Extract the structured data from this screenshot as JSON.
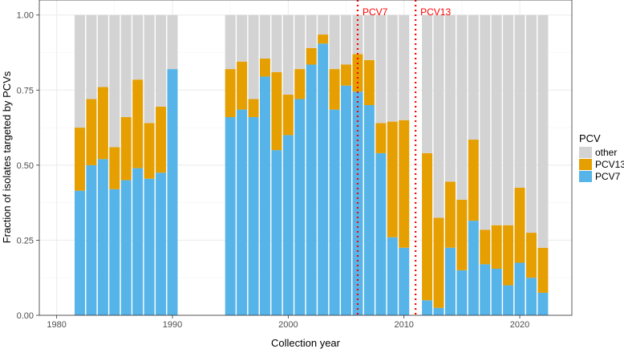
{
  "chart_data": {
    "type": "bar",
    "stacked": true,
    "title": "",
    "xlabel": "Collection year",
    "ylabel": "Fraction of isolates targeted by PCVs",
    "xlim": [
      1978.5,
      2024.5
    ],
    "ylim": [
      0,
      1.05
    ],
    "xticks": [
      1980,
      1990,
      2000,
      2010,
      2020
    ],
    "xtick_labels": [
      "1980",
      "1990",
      "2000",
      "2010",
      "2020"
    ],
    "yticks": [
      0,
      0.25,
      0.5,
      0.75,
      1.0
    ],
    "ytick_labels": [
      "0.00",
      "0.25",
      "0.50",
      "0.75",
      "1.00"
    ],
    "grid": true,
    "legend": {
      "title": "PCV",
      "position": "right",
      "entries": [
        {
          "name": "other",
          "color": "#d3d3d3"
        },
        {
          "name": "PCV13",
          "color": "#e69f00"
        },
        {
          "name": "PCV7",
          "color": "#56b4e9"
        }
      ]
    },
    "series": [
      {
        "name": "PCV7",
        "color": "#56b4e9",
        "points": [
          {
            "x": 1982,
            "y": 0.415
          },
          {
            "x": 1983,
            "y": 0.5
          },
          {
            "x": 1984,
            "y": 0.52
          },
          {
            "x": 1985,
            "y": 0.42
          },
          {
            "x": 1986,
            "y": 0.45
          },
          {
            "x": 1987,
            "y": 0.49
          },
          {
            "x": 1988,
            "y": 0.455
          },
          {
            "x": 1989,
            "y": 0.475
          },
          {
            "x": 1990,
            "y": 0.82
          },
          {
            "x": 1995,
            "y": 0.66
          },
          {
            "x": 1996,
            "y": 0.685
          },
          {
            "x": 1997,
            "y": 0.66
          },
          {
            "x": 1998,
            "y": 0.795
          },
          {
            "x": 1999,
            "y": 0.55
          },
          {
            "x": 2000,
            "y": 0.6
          },
          {
            "x": 2001,
            "y": 0.72
          },
          {
            "x": 2002,
            "y": 0.835
          },
          {
            "x": 2003,
            "y": 0.905
          },
          {
            "x": 2004,
            "y": 0.685
          },
          {
            "x": 2005,
            "y": 0.765
          },
          {
            "x": 2006,
            "y": 0.745
          },
          {
            "x": 2007,
            "y": 0.7
          },
          {
            "x": 2008,
            "y": 0.54
          },
          {
            "x": 2009,
            "y": 0.26
          },
          {
            "x": 2010,
            "y": 0.225
          },
          {
            "x": 2012,
            "y": 0.05
          },
          {
            "x": 2013,
            "y": 0.025
          },
          {
            "x": 2014,
            "y": 0.225
          },
          {
            "x": 2015,
            "y": 0.15
          },
          {
            "x": 2016,
            "y": 0.315
          },
          {
            "x": 2017,
            "y": 0.17
          },
          {
            "x": 2018,
            "y": 0.155
          },
          {
            "x": 2019,
            "y": 0.1
          },
          {
            "x": 2020,
            "y": 0.175
          },
          {
            "x": 2021,
            "y": 0.125
          },
          {
            "x": 2022,
            "y": 0.075
          }
        ]
      },
      {
        "name": "PCV13",
        "color": "#e69f00",
        "points": [
          {
            "x": 1982,
            "y": 0.21
          },
          {
            "x": 1983,
            "y": 0.22
          },
          {
            "x": 1984,
            "y": 0.24
          },
          {
            "x": 1985,
            "y": 0.14
          },
          {
            "x": 1986,
            "y": 0.21
          },
          {
            "x": 1987,
            "y": 0.295
          },
          {
            "x": 1988,
            "y": 0.185
          },
          {
            "x": 1989,
            "y": 0.22
          },
          {
            "x": 1990,
            "y": 0.0
          },
          {
            "x": 1995,
            "y": 0.16
          },
          {
            "x": 1996,
            "y": 0.16
          },
          {
            "x": 1997,
            "y": 0.06
          },
          {
            "x": 1998,
            "y": 0.06
          },
          {
            "x": 1999,
            "y": 0.26
          },
          {
            "x": 2000,
            "y": 0.135
          },
          {
            "x": 2001,
            "y": 0.1
          },
          {
            "x": 2002,
            "y": 0.055
          },
          {
            "x": 2003,
            "y": 0.03
          },
          {
            "x": 2004,
            "y": 0.135
          },
          {
            "x": 2005,
            "y": 0.07
          },
          {
            "x": 2006,
            "y": 0.125
          },
          {
            "x": 2007,
            "y": 0.15
          },
          {
            "x": 2008,
            "y": 0.1
          },
          {
            "x": 2009,
            "y": 0.385
          },
          {
            "x": 2010,
            "y": 0.425
          },
          {
            "x": 2012,
            "y": 0.49
          },
          {
            "x": 2013,
            "y": 0.3
          },
          {
            "x": 2014,
            "y": 0.22
          },
          {
            "x": 2015,
            "y": 0.235
          },
          {
            "x": 2016,
            "y": 0.27
          },
          {
            "x": 2017,
            "y": 0.115
          },
          {
            "x": 2018,
            "y": 0.145
          },
          {
            "x": 2019,
            "y": 0.2
          },
          {
            "x": 2020,
            "y": 0.25
          },
          {
            "x": 2021,
            "y": 0.15
          },
          {
            "x": 2022,
            "y": 0.15
          }
        ]
      },
      {
        "name": "other",
        "color": "#d3d3d3",
        "points": [
          {
            "x": 1982,
            "y": 0.375
          },
          {
            "x": 1983,
            "y": 0.28
          },
          {
            "x": 1984,
            "y": 0.24
          },
          {
            "x": 1985,
            "y": 0.44
          },
          {
            "x": 1986,
            "y": 0.34
          },
          {
            "x": 1987,
            "y": 0.215
          },
          {
            "x": 1988,
            "y": 0.36
          },
          {
            "x": 1989,
            "y": 0.305
          },
          {
            "x": 1990,
            "y": 0.18
          },
          {
            "x": 1995,
            "y": 0.18
          },
          {
            "x": 1996,
            "y": 0.155
          },
          {
            "x": 1997,
            "y": 0.28
          },
          {
            "x": 1998,
            "y": 0.145
          },
          {
            "x": 1999,
            "y": 0.19
          },
          {
            "x": 2000,
            "y": 0.265
          },
          {
            "x": 2001,
            "y": 0.18
          },
          {
            "x": 2002,
            "y": 0.11
          },
          {
            "x": 2003,
            "y": 0.065
          },
          {
            "x": 2004,
            "y": 0.18
          },
          {
            "x": 2005,
            "y": 0.165
          },
          {
            "x": 2006,
            "y": 0.13
          },
          {
            "x": 2007,
            "y": 0.15
          },
          {
            "x": 2008,
            "y": 0.36
          },
          {
            "x": 2009,
            "y": 0.355
          },
          {
            "x": 2010,
            "y": 0.35
          },
          {
            "x": 2012,
            "y": 0.46
          },
          {
            "x": 2013,
            "y": 0.675
          },
          {
            "x": 2014,
            "y": 0.555
          },
          {
            "x": 2015,
            "y": 0.615
          },
          {
            "x": 2016,
            "y": 0.415
          },
          {
            "x": 2017,
            "y": 0.715
          },
          {
            "x": 2018,
            "y": 0.7
          },
          {
            "x": 2019,
            "y": 0.7
          },
          {
            "x": 2020,
            "y": 0.575
          },
          {
            "x": 2021,
            "y": 0.725
          },
          {
            "x": 2022,
            "y": 0.775
          }
        ]
      }
    ],
    "annotations": [
      {
        "label": "PCV7",
        "x": 2006,
        "style": "dotted-vline",
        "color": "#ff0000"
      },
      {
        "label": "PCV13",
        "x": 2011,
        "style": "dotted-vline",
        "color": "#ff0000"
      }
    ]
  }
}
